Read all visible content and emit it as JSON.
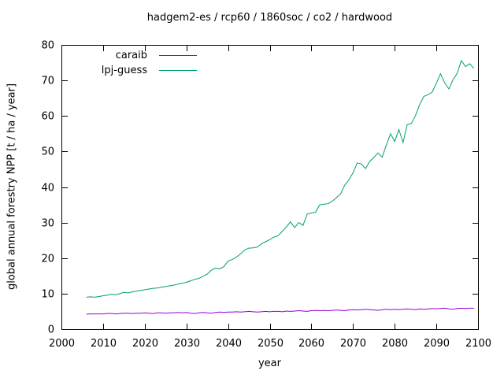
{
  "chart_data": {
    "type": "line",
    "title": "hadgem2-es / rcp60 / 1860soc / co2 / hardwood",
    "xlabel": "year",
    "ylabel": "global annual forestry NPP [t / ha / year]",
    "xlim": [
      2000,
      2100
    ],
    "ylim": [
      0,
      80
    ],
    "xticks": [
      2000,
      2010,
      2020,
      2030,
      2040,
      2050,
      2060,
      2070,
      2080,
      2090,
      2100
    ],
    "yticks": [
      0,
      10,
      20,
      30,
      40,
      50,
      60,
      70,
      80
    ],
    "grid": false,
    "legend_position": "top-left-inside",
    "background_color": "#ffffff",
    "axis_color": "#000000",
    "x_years": {
      "start": 2006,
      "end": 2099,
      "step": 1
    },
    "series": [
      {
        "name": "caraib",
        "color": "#9400d3",
        "values": [
          4.2,
          4.3,
          4.3,
          4.3,
          4.3,
          4.4,
          4.4,
          4.3,
          4.4,
          4.5,
          4.5,
          4.4,
          4.5,
          4.5,
          4.6,
          4.5,
          4.4,
          4.6,
          4.6,
          4.5,
          4.6,
          4.6,
          4.7,
          4.6,
          4.7,
          4.5,
          4.4,
          4.6,
          4.7,
          4.6,
          4.5,
          4.7,
          4.8,
          4.7,
          4.8,
          4.8,
          4.9,
          4.8,
          4.9,
          5.0,
          4.9,
          4.8,
          4.9,
          5.0,
          4.9,
          5.0,
          5.0,
          4.9,
          5.1,
          5.0,
          5.1,
          5.2,
          5.1,
          5.0,
          5.2,
          5.3,
          5.2,
          5.3,
          5.2,
          5.3,
          5.4,
          5.3,
          5.2,
          5.4,
          5.5,
          5.4,
          5.5,
          5.6,
          5.5,
          5.4,
          5.3,
          5.5,
          5.6,
          5.5,
          5.6,
          5.5,
          5.6,
          5.7,
          5.6,
          5.5,
          5.7,
          5.6,
          5.7,
          5.8,
          5.7,
          5.8,
          5.9,
          5.7,
          5.6,
          5.8,
          5.9,
          5.8,
          5.9,
          5.9
        ]
      },
      {
        "name": "lpj-guess",
        "color": "#009e73",
        "values": [
          9.0,
          9.1,
          9.0,
          9.2,
          9.4,
          9.6,
          9.8,
          9.7,
          10.0,
          10.4,
          10.2,
          10.5,
          10.7,
          10.9,
          11.1,
          11.3,
          11.5,
          11.6,
          11.8,
          12.0,
          12.2,
          12.4,
          12.7,
          12.9,
          13.2,
          13.6,
          14.0,
          14.3,
          14.9,
          15.5,
          16.6,
          17.2,
          17.0,
          17.6,
          19.2,
          19.6,
          20.3,
          21.2,
          22.3,
          22.8,
          22.9,
          23.1,
          24.0,
          24.6,
          25.2,
          25.9,
          26.3,
          27.5,
          28.8,
          30.2,
          28.6,
          30.0,
          29.2,
          32.4,
          32.7,
          32.9,
          35.0,
          35.2,
          35.3,
          36.0,
          37.0,
          38.0,
          40.5,
          42.0,
          44.0,
          46.8,
          46.5,
          45.2,
          47.2,
          48.3,
          49.6,
          48.4,
          51.8,
          55.0,
          52.8,
          56.2,
          52.5,
          57.6,
          57.9,
          60.1,
          63.2,
          65.5,
          66.0,
          66.7,
          69.2,
          71.9,
          69.3,
          67.6,
          70.2,
          72.0,
          75.6,
          73.9,
          74.7,
          73.4
        ]
      }
    ]
  }
}
